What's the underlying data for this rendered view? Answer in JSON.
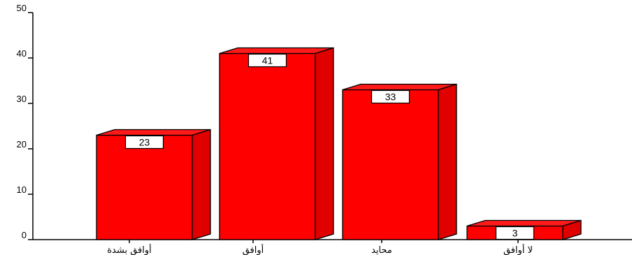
{
  "chart_data": {
    "type": "bar",
    "style": "3d",
    "categories": [
      "أوافق بشدة",
      "أوافق",
      "محايد",
      "لا أوافق"
    ],
    "values": [
      23,
      41,
      33,
      3
    ],
    "data_labels": [
      "23",
      "41",
      "33",
      "3"
    ],
    "ylim": [
      0,
      50
    ],
    "yticks": [
      0,
      10,
      20,
      30,
      40,
      50
    ],
    "ytick_labels": [
      "0",
      "10",
      "20",
      "30",
      "40",
      "50"
    ],
    "grid": false,
    "legend": "none",
    "colors": {
      "bar_front": "#FF0000",
      "bar_side": "#E00000",
      "bar_top": "#FF1A1A",
      "outline": "#000000",
      "label_box": "#FFFFFF"
    }
  }
}
